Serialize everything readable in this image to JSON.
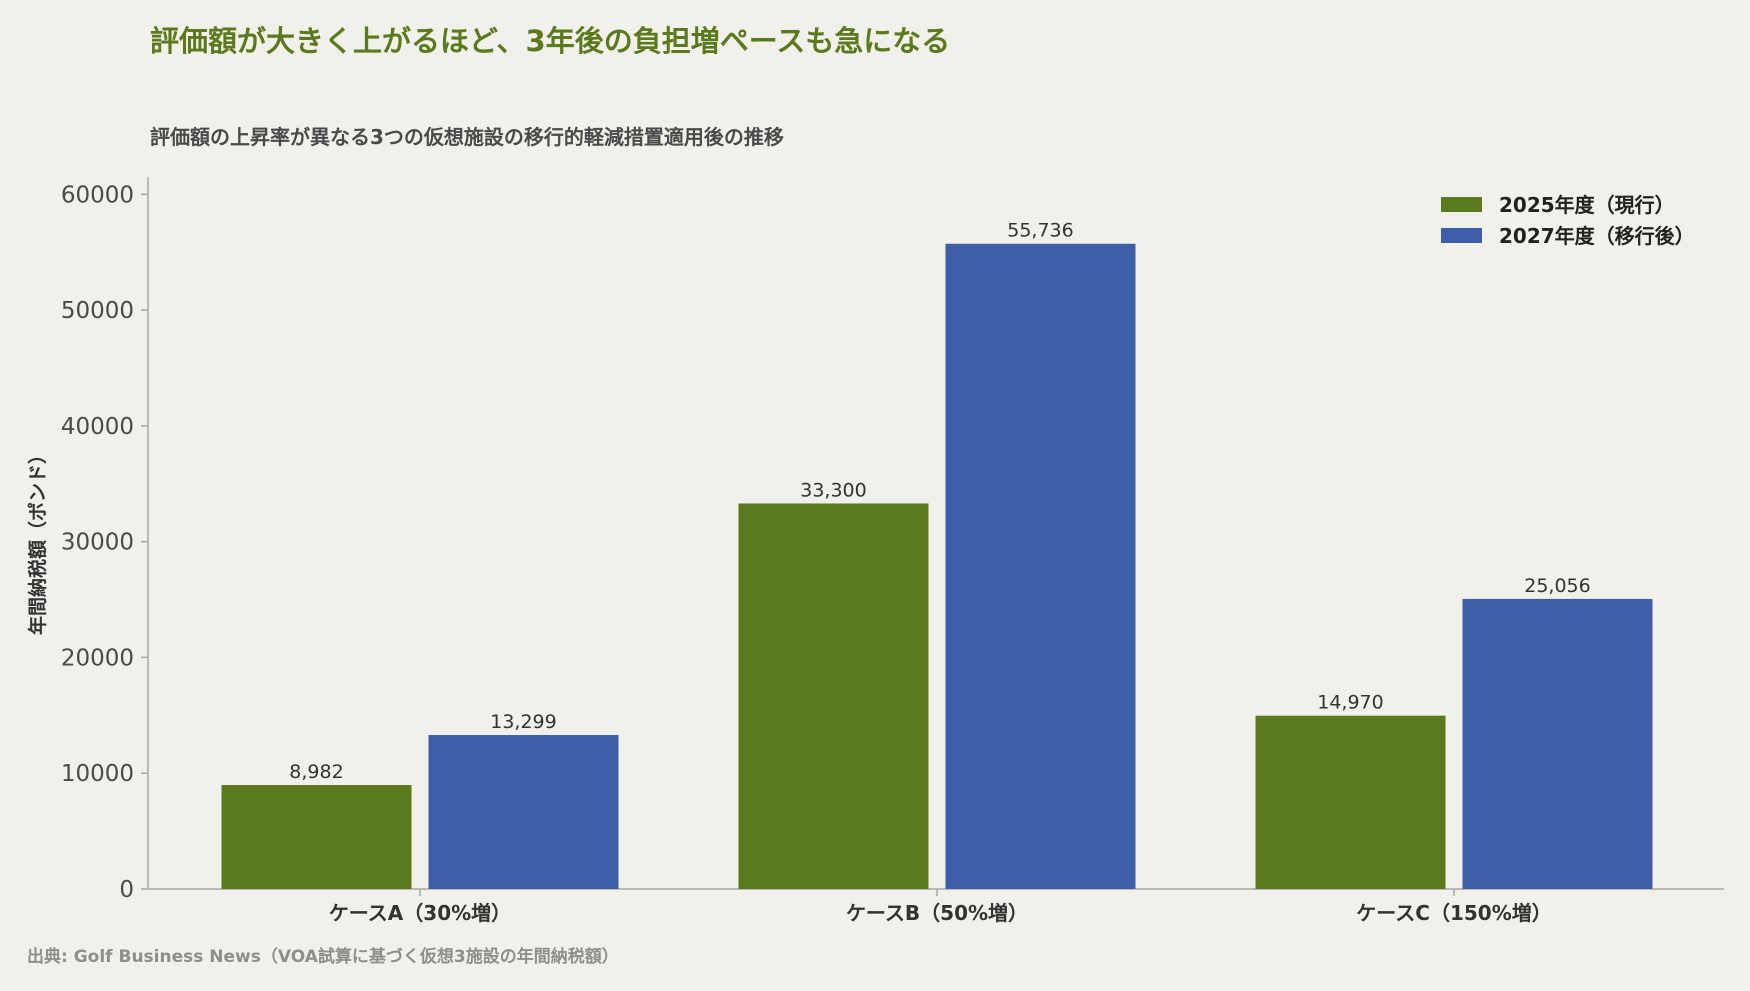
{
  "title": "評価額が大きく上がるほど、3年後の負担増ペースも急になる",
  "subtitle": "評価額の上昇率が異なる3つの仮想施設の移行的軽減措置適用後の推移",
  "source": "出典: Golf Business News（VOA試算に基づく仮想3施設の年間納税額）",
  "chart_data": {
    "type": "bar",
    "title": "評価額が大きく上がるほど、3年後の負担増ペースも急になる",
    "subtitle": "評価額の上昇率が異なる3つの仮想施設の移行的軽減措置適用後の推移",
    "xlabel": "",
    "ylabel": "年間納税額（ポンド）",
    "ylim": [
      0,
      61500
    ],
    "yticks": [
      0,
      10000,
      20000,
      30000,
      40000,
      50000,
      60000
    ],
    "ytick_labels": [
      "0",
      "10000",
      "20000",
      "30000",
      "40000",
      "50000",
      "60000"
    ],
    "categories": [
      "ケースA（30%増）",
      "ケースB（50%増）",
      "ケースC（150%増）"
    ],
    "series": [
      {
        "name": "2025年度（現行）",
        "color": "#5b7a1e",
        "values": [
          8982,
          33300,
          14970
        ],
        "labels": [
          "8,982",
          "33,300",
          "14,970"
        ]
      },
      {
        "name": "2027年度（移行後）",
        "color": "#3e5ea8",
        "values": [
          13299,
          55736,
          25056
        ],
        "labels": [
          "13,299",
          "55,736",
          "25,056"
        ]
      }
    ],
    "legend_position": "top-right",
    "grid": false
  }
}
